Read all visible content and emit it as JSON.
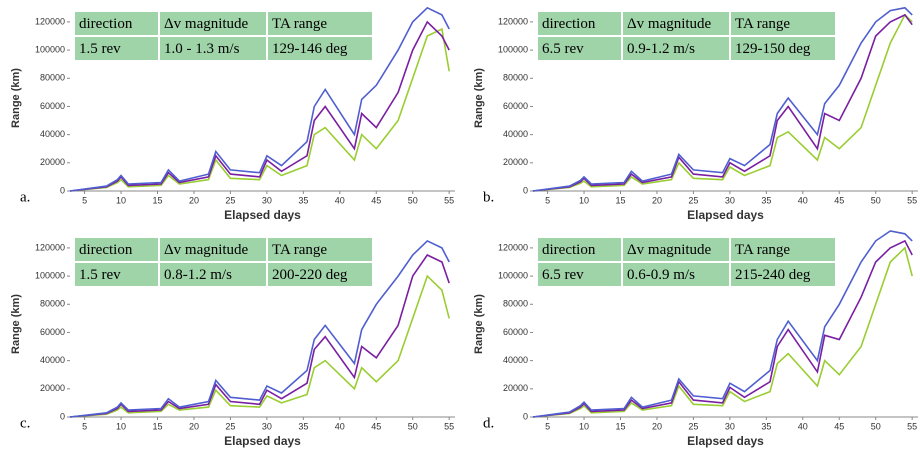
{
  "chart_data": [
    {
      "type": "line",
      "panel_label": "a.",
      "table": [
        [
          "direction",
          "Δv magnitude",
          "TA range"
        ],
        [
          "1.5 rev",
          "1.0 - 1.3 m/s",
          "129-146 deg"
        ]
      ],
      "xlabel": "Elapsed days",
      "ylabel": "Range (km)",
      "xlim": [
        3,
        55.8
      ],
      "ylim": [
        0,
        132000
      ],
      "xticks": [
        5,
        10,
        15,
        20,
        25,
        30,
        35,
        40,
        45,
        50,
        55
      ],
      "yticks": [
        0,
        20000,
        40000,
        60000,
        80000,
        100000,
        120000
      ],
      "x": [
        3,
        8,
        9.5,
        10,
        11,
        15.5,
        16.5,
        18,
        22,
        23,
        25,
        29,
        30,
        32,
        35.5,
        36.5,
        38,
        42,
        43,
        45,
        48,
        50,
        52,
        54,
        55
      ],
      "series": [
        {
          "color": "#9acd32",
          "values": [
            0,
            2500,
            6000,
            8000,
            3000,
            4000,
            11000,
            5000,
            8000,
            22000,
            9000,
            8000,
            18000,
            11000,
            18000,
            40000,
            45000,
            22000,
            40000,
            30000,
            50000,
            80000,
            110000,
            115000,
            85000
          ]
        },
        {
          "color": "#7a1fa2",
          "values": [
            0,
            3000,
            7000,
            10000,
            4000,
            5000,
            13000,
            6000,
            10000,
            25000,
            12000,
            10000,
            22000,
            14000,
            25000,
            50000,
            60000,
            30000,
            55000,
            45000,
            70000,
            100000,
            120000,
            110000,
            100000
          ]
        },
        {
          "color": "#4f5fd0",
          "values": [
            0,
            3500,
            8000,
            11000,
            5000,
            6000,
            15000,
            7000,
            12000,
            28000,
            15000,
            13000,
            25000,
            18000,
            35000,
            60000,
            72000,
            40000,
            65000,
            75000,
            100000,
            120000,
            130000,
            125000,
            115000
          ]
        }
      ]
    },
    {
      "type": "line",
      "panel_label": "b.",
      "table": [
        [
          "direction",
          "Δv magnitude",
          "TA range"
        ],
        [
          "6.5 rev",
          "0.9-1.2 m/s",
          "129-150 deg"
        ]
      ],
      "xlabel": "Elapsed days",
      "ylabel": "Range (km)",
      "xlim": [
        3,
        55.8
      ],
      "ylim": [
        0,
        132000
      ],
      "xticks": [
        5,
        10,
        15,
        20,
        25,
        30,
        35,
        40,
        45,
        50,
        55
      ],
      "yticks": [
        0,
        20000,
        40000,
        60000,
        80000,
        100000,
        120000
      ],
      "x": [
        3,
        8,
        9.5,
        10,
        11,
        15.5,
        16.5,
        18,
        22,
        23,
        25,
        29,
        30,
        32,
        35.5,
        36.5,
        38,
        42,
        43,
        45,
        48,
        50,
        52,
        54,
        55
      ],
      "series": [
        {
          "color": "#9acd32",
          "values": [
            0,
            2500,
            5500,
            7000,
            3000,
            4000,
            10000,
            5000,
            8000,
            20000,
            9000,
            8000,
            17000,
            11000,
            18000,
            38000,
            42000,
            22000,
            38000,
            30000,
            45000,
            75000,
            105000,
            125000,
            120000
          ]
        },
        {
          "color": "#7a1fa2",
          "values": [
            0,
            3000,
            6500,
            9000,
            4000,
            5000,
            12000,
            6000,
            10000,
            24000,
            12000,
            10000,
            20000,
            14000,
            25000,
            50000,
            60000,
            30000,
            55000,
            50000,
            80000,
            110000,
            120000,
            125000,
            118000
          ]
        },
        {
          "color": "#4f5fd0",
          "values": [
            0,
            3500,
            7500,
            10000,
            5000,
            6000,
            14000,
            7000,
            12000,
            26000,
            15000,
            13000,
            23000,
            18000,
            33000,
            55000,
            66000,
            40000,
            62000,
            75000,
            105000,
            120000,
            128000,
            130000,
            125000
          ]
        }
      ]
    },
    {
      "type": "line",
      "panel_label": "c.",
      "table": [
        [
          "direction",
          "Δv magnitude",
          "TA range"
        ],
        [
          "1.5 rev",
          "0.8-1.2 m/s",
          "200-220 deg"
        ]
      ],
      "xlabel": "Elapsed days",
      "ylabel": "Range (km)",
      "xlim": [
        3,
        55.8
      ],
      "ylim": [
        0,
        132000
      ],
      "xticks": [
        5,
        10,
        15,
        20,
        25,
        30,
        35,
        40,
        45,
        50,
        55
      ],
      "yticks": [
        0,
        20000,
        40000,
        60000,
        80000,
        100000,
        120000
      ],
      "x": [
        3,
        8,
        9.5,
        10,
        11,
        15.5,
        16.5,
        18,
        22,
        23,
        25,
        29,
        30,
        32,
        35.5,
        36.5,
        38,
        42,
        43,
        45,
        48,
        50,
        52,
        54,
        55
      ],
      "series": [
        {
          "color": "#9acd32",
          "values": [
            0,
            2000,
            5000,
            7000,
            3000,
            4000,
            9000,
            5000,
            7000,
            19000,
            8000,
            7000,
            15000,
            10000,
            16000,
            35000,
            40000,
            20000,
            35000,
            25000,
            40000,
            70000,
            100000,
            90000,
            70000
          ]
        },
        {
          "color": "#7a1fa2",
          "values": [
            0,
            2500,
            6000,
            9000,
            4000,
            5000,
            11000,
            6000,
            9000,
            23000,
            11000,
            9000,
            19000,
            13000,
            24000,
            48000,
            57000,
            28000,
            50000,
            42000,
            65000,
            100000,
            115000,
            110000,
            95000
          ]
        },
        {
          "color": "#4f5fd0",
          "values": [
            0,
            3000,
            7000,
            10000,
            5000,
            6000,
            13000,
            7000,
            11000,
            26000,
            14000,
            12000,
            22000,
            17000,
            33000,
            55000,
            65000,
            38000,
            62000,
            80000,
            100000,
            115000,
            125000,
            120000,
            110000
          ]
        }
      ]
    },
    {
      "type": "line",
      "panel_label": "d.",
      "table": [
        [
          "direction",
          "Δv magnitude",
          "TA range"
        ],
        [
          "6.5 rev",
          "0.6-0.9 m/s",
          "215-240 deg"
        ]
      ],
      "xlabel": "Elapsed days",
      "ylabel": "Range (km)",
      "xlim": [
        3,
        55.8
      ],
      "ylim": [
        0,
        132000
      ],
      "xticks": [
        5,
        10,
        15,
        20,
        25,
        30,
        35,
        40,
        45,
        50,
        55
      ],
      "yticks": [
        0,
        20000,
        40000,
        60000,
        80000,
        100000,
        120000
      ],
      "x": [
        3,
        8,
        9.5,
        10,
        11,
        15.5,
        16.5,
        18,
        22,
        23,
        25,
        29,
        30,
        32,
        35.5,
        36.5,
        38,
        42,
        43,
        45,
        48,
        50,
        52,
        54,
        55
      ],
      "series": [
        {
          "color": "#9acd32",
          "values": [
            0,
            2500,
            6000,
            8000,
            3000,
            4000,
            10000,
            5000,
            8000,
            22000,
            9000,
            8000,
            18000,
            11000,
            18000,
            38000,
            45000,
            22000,
            40000,
            30000,
            50000,
            80000,
            110000,
            120000,
            100000
          ]
        },
        {
          "color": "#7a1fa2",
          "values": [
            0,
            3000,
            7000,
            9500,
            4000,
            5000,
            12000,
            6000,
            10000,
            25000,
            12000,
            10000,
            21000,
            14000,
            25000,
            50000,
            62000,
            32000,
            58000,
            55000,
            85000,
            110000,
            120000,
            125000,
            115000
          ]
        },
        {
          "color": "#4f5fd0",
          "values": [
            0,
            3500,
            8000,
            10500,
            5000,
            6000,
            14000,
            7000,
            12000,
            27000,
            15000,
            13000,
            24000,
            18000,
            33000,
            55000,
            68000,
            40000,
            64000,
            80000,
            110000,
            125000,
            132000,
            130000,
            125000
          ]
        }
      ]
    }
  ]
}
